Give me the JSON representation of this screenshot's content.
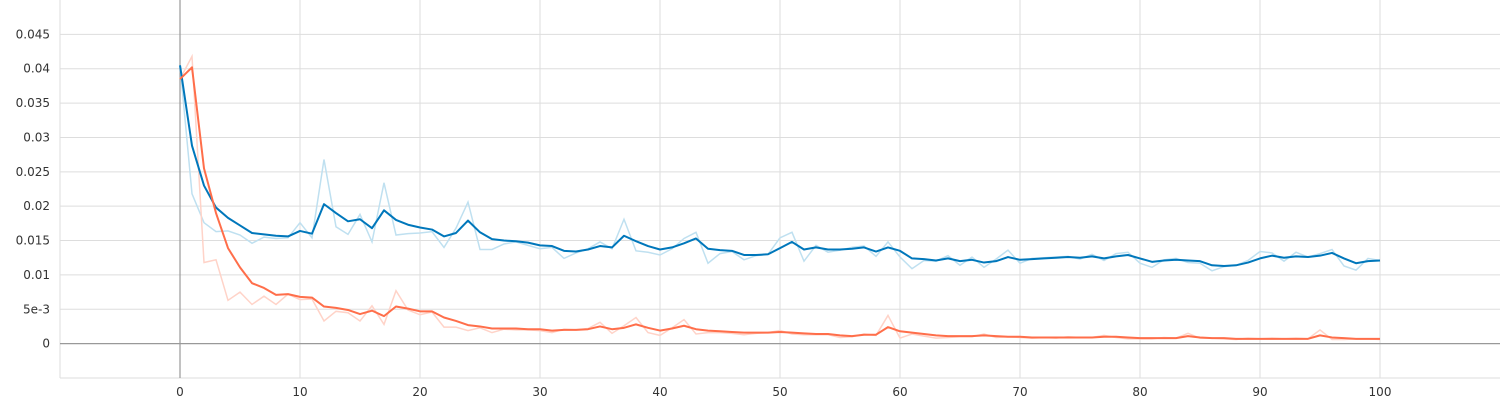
{
  "chart_data": {
    "type": "line",
    "title": "",
    "xlabel": "",
    "ylabel": "",
    "xlim": [
      -10,
      110
    ],
    "ylim": [
      -0.005,
      0.05
    ],
    "grid": true,
    "x_ticks": [
      0,
      10,
      20,
      30,
      40,
      50,
      60,
      70,
      80,
      90,
      100
    ],
    "x_tick_labels": [
      "0",
      "10",
      "20",
      "30",
      "40",
      "50",
      "60",
      "70",
      "80",
      "90",
      "100"
    ],
    "y_ticks": [
      0,
      0.005,
      0.01,
      0.015,
      0.02,
      0.025,
      0.03,
      0.035,
      0.04,
      0.045
    ],
    "y_tick_labels": [
      "0",
      "5e-3",
      "0.01",
      "0.015",
      "0.02",
      "0.025",
      "0.03",
      "0.035",
      "0.04",
      "0.045"
    ],
    "series": [
      {
        "color": "#0077bb",
        "raw_color": "#bfe0f0",
        "x": [
          0,
          1,
          2,
          3,
          4,
          5,
          6,
          7,
          8,
          9,
          10,
          11,
          12,
          13,
          14,
          15,
          16,
          17,
          18,
          19,
          20,
          21,
          22,
          23,
          24,
          25,
          26,
          27,
          28,
          29,
          30,
          31,
          32,
          33,
          34,
          35,
          36,
          37,
          38,
          39,
          40,
          41,
          42,
          43,
          44,
          45,
          46,
          47,
          48,
          49,
          50,
          51,
          52,
          53,
          54,
          55,
          56,
          57,
          58,
          59,
          60,
          61,
          62,
          63,
          64,
          65,
          66,
          67,
          68,
          69,
          70,
          71,
          72,
          73,
          74,
          75,
          76,
          77,
          78,
          79,
          80,
          81,
          82,
          83,
          84,
          85,
          86,
          87,
          88,
          89,
          90,
          91,
          92,
          93,
          94,
          95,
          96,
          97,
          98,
          99,
          100
        ],
        "raw": [
          0.0405,
          0.0218,
          0.0176,
          0.0163,
          0.0164,
          0.0158,
          0.0146,
          0.0155,
          0.0153,
          0.0154,
          0.0176,
          0.0154,
          0.0268,
          0.017,
          0.0159,
          0.0188,
          0.0148,
          0.0234,
          0.0158,
          0.016,
          0.0161,
          0.0163,
          0.014,
          0.0168,
          0.0206,
          0.0137,
          0.0137,
          0.0145,
          0.0148,
          0.0143,
          0.0138,
          0.014,
          0.0124,
          0.0132,
          0.0138,
          0.0148,
          0.0138,
          0.0181,
          0.0135,
          0.0133,
          0.0129,
          0.0138,
          0.0153,
          0.0162,
          0.0117,
          0.0131,
          0.0134,
          0.0122,
          0.0128,
          0.013,
          0.0154,
          0.0162,
          0.012,
          0.0143,
          0.0133,
          0.0136,
          0.014,
          0.0142,
          0.0127,
          0.0148,
          0.0126,
          0.0109,
          0.0121,
          0.012,
          0.0128,
          0.0114,
          0.0126,
          0.0111,
          0.0123,
          0.0136,
          0.0117,
          0.0124,
          0.0125,
          0.0126,
          0.0127,
          0.0123,
          0.013,
          0.0121,
          0.0131,
          0.0133,
          0.0117,
          0.0111,
          0.0122,
          0.0124,
          0.0118,
          0.0117,
          0.0106,
          0.0112,
          0.0114,
          0.0121,
          0.0134,
          0.0132,
          0.012,
          0.0133,
          0.0126,
          0.0131,
          0.0137,
          0.0113,
          0.0107,
          0.0124,
          0.0121
        ],
        "smoothed": [
          0.0405,
          0.0288,
          0.023,
          0.0198,
          0.0183,
          0.0172,
          0.0161,
          0.0159,
          0.0157,
          0.0156,
          0.0164,
          0.016,
          0.0203,
          0.019,
          0.0178,
          0.0181,
          0.0168,
          0.0194,
          0.018,
          0.0173,
          0.0169,
          0.0166,
          0.0156,
          0.0161,
          0.0179,
          0.0162,
          0.0152,
          0.015,
          0.0149,
          0.0147,
          0.0143,
          0.0142,
          0.0135,
          0.0134,
          0.0137,
          0.0142,
          0.014,
          0.0157,
          0.0149,
          0.0142,
          0.0137,
          0.014,
          0.0146,
          0.0153,
          0.0138,
          0.0136,
          0.0135,
          0.0129,
          0.0129,
          0.013,
          0.0139,
          0.0148,
          0.0137,
          0.014,
          0.0137,
          0.0137,
          0.0138,
          0.014,
          0.0134,
          0.014,
          0.0135,
          0.0124,
          0.0123,
          0.0121,
          0.0124,
          0.012,
          0.0122,
          0.0118,
          0.012,
          0.0126,
          0.0122,
          0.0123,
          0.0124,
          0.0125,
          0.0126,
          0.0125,
          0.0127,
          0.0124,
          0.0127,
          0.0129,
          0.0124,
          0.0119,
          0.0121,
          0.0122,
          0.0121,
          0.012,
          0.0114,
          0.0113,
          0.0114,
          0.0118,
          0.0124,
          0.0128,
          0.0125,
          0.0127,
          0.0126,
          0.0128,
          0.0132,
          0.0124,
          0.0117,
          0.012,
          0.0121
        ]
      },
      {
        "color": "#ff6e4a",
        "raw_color": "#ffd3c8",
        "x": [
          0,
          1,
          2,
          3,
          4,
          5,
          6,
          7,
          8,
          9,
          10,
          11,
          12,
          13,
          14,
          15,
          16,
          17,
          18,
          19,
          20,
          21,
          22,
          23,
          24,
          25,
          26,
          27,
          28,
          29,
          30,
          31,
          32,
          33,
          34,
          35,
          36,
          37,
          38,
          39,
          40,
          41,
          42,
          43,
          44,
          45,
          46,
          47,
          48,
          49,
          50,
          51,
          52,
          53,
          54,
          55,
          56,
          57,
          58,
          59,
          60,
          61,
          62,
          63,
          64,
          65,
          66,
          67,
          68,
          69,
          70,
          71,
          72,
          73,
          74,
          75,
          76,
          77,
          78,
          79,
          80,
          81,
          82,
          83,
          84,
          85,
          86,
          87,
          88,
          89,
          90,
          91,
          92,
          93,
          94,
          95,
          96,
          97,
          98,
          99,
          100
        ],
        "raw": [
          0.0385,
          0.0418,
          0.0118,
          0.0122,
          0.0063,
          0.0075,
          0.0057,
          0.0069,
          0.0057,
          0.0072,
          0.0064,
          0.0065,
          0.0033,
          0.0047,
          0.0045,
          0.0033,
          0.0055,
          0.0028,
          0.0077,
          0.0049,
          0.0042,
          0.0046,
          0.0024,
          0.0024,
          0.0019,
          0.0023,
          0.0016,
          0.0021,
          0.002,
          0.002,
          0.0019,
          0.0016,
          0.0021,
          0.002,
          0.0022,
          0.0031,
          0.0015,
          0.0026,
          0.0038,
          0.0016,
          0.0012,
          0.0023,
          0.0035,
          0.0014,
          0.0016,
          0.0016,
          0.0015,
          0.0013,
          0.0015,
          0.0016,
          0.0019,
          0.0014,
          0.0013,
          0.0013,
          0.0013,
          0.0009,
          0.001,
          0.0014,
          0.0012,
          0.0041,
          0.0008,
          0.0014,
          0.0011,
          0.0008,
          0.0009,
          0.001,
          0.001,
          0.0014,
          0.0009,
          0.001,
          0.0009,
          0.0008,
          0.0009,
          0.0008,
          0.001,
          0.0009,
          0.0009,
          0.0012,
          0.0009,
          0.0007,
          0.0007,
          0.0007,
          0.0009,
          0.0008,
          0.0015,
          0.0008,
          0.0008,
          0.0007,
          0.0006,
          0.0008,
          0.0007,
          0.0008,
          0.0007,
          0.0008,
          0.0007,
          0.002,
          0.0006,
          0.0006,
          0.0007,
          0.0007,
          0.0006
        ],
        "smoothed": [
          0.0385,
          0.0402,
          0.0255,
          0.019,
          0.0139,
          0.0111,
          0.0088,
          0.0081,
          0.0071,
          0.0072,
          0.0068,
          0.0067,
          0.0054,
          0.0052,
          0.0049,
          0.0043,
          0.0048,
          0.004,
          0.0054,
          0.0051,
          0.0047,
          0.0047,
          0.0038,
          0.0033,
          0.0027,
          0.0025,
          0.0022,
          0.0022,
          0.0022,
          0.0021,
          0.0021,
          0.0019,
          0.002,
          0.002,
          0.0021,
          0.0025,
          0.0021,
          0.0023,
          0.0028,
          0.0023,
          0.0019,
          0.0022,
          0.0026,
          0.0021,
          0.0019,
          0.0018,
          0.0017,
          0.0016,
          0.0016,
          0.0016,
          0.0017,
          0.0016,
          0.0015,
          0.0014,
          0.0014,
          0.0012,
          0.0011,
          0.0013,
          0.0013,
          0.0024,
          0.0018,
          0.0016,
          0.0014,
          0.0012,
          0.0011,
          0.0011,
          0.0011,
          0.0012,
          0.0011,
          0.001,
          0.001,
          0.0009,
          0.0009,
          0.0009,
          0.0009,
          0.0009,
          0.0009,
          0.001,
          0.001,
          0.0009,
          0.0008,
          0.0008,
          0.0008,
          0.0008,
          0.0011,
          0.0009,
          0.0008,
          0.0008,
          0.0007,
          0.0007,
          0.0007,
          0.0007,
          0.0007,
          0.0007,
          0.0007,
          0.0012,
          0.0009,
          0.0008,
          0.0007,
          0.0007,
          0.0007
        ]
      }
    ]
  }
}
